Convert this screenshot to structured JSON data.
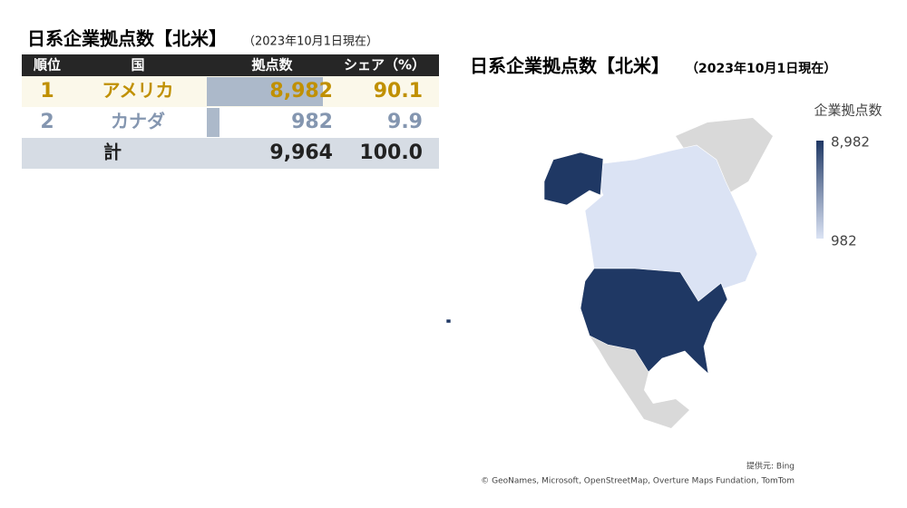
{
  "table": {
    "title": "日系企業拠点数【北米】",
    "subtitle": "（2023年10月1日現在）",
    "columns": [
      "順位",
      "国",
      "拠点数",
      "シェア（%）"
    ],
    "rows": [
      {
        "rank": 1,
        "country": "アメリカ",
        "count": 8982,
        "count_label": "8,982",
        "share": 90.1
      },
      {
        "rank": 2,
        "country": "カナダ",
        "count": 982,
        "count_label": "982",
        "share": 9.9
      }
    ],
    "total": {
      "label": "計",
      "count": 9964,
      "count_label": "9,964",
      "share": 100,
      "share_label": "100.0"
    }
  },
  "map": {
    "title": "日系企業拠点数【北米】",
    "subtitle": "（2023年10月1日現在）",
    "legend": {
      "title": "企業拠点数",
      "max": {
        "value": 8982,
        "label": "8,982"
      },
      "min": {
        "value": 982,
        "label": "982"
      },
      "colors": [
        "#1f3864",
        "#dbe3f4"
      ]
    },
    "attribution": [
      "提供元: Bing",
      "© GeoNames, Microsoft, OpenStreetMap, Overture Maps Fundation, TomTom"
    ]
  }
}
